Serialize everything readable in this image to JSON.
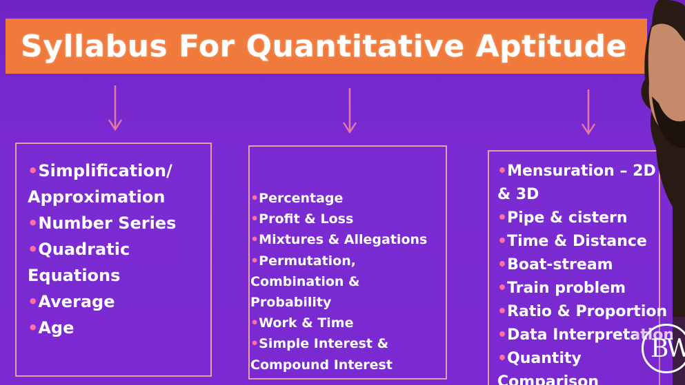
{
  "title": "Syllabus For Quantitative Aptitude",
  "colors": {
    "background": "#7a2ad0",
    "title_bar": "#f07a3c",
    "box_border": "#e8a0a8",
    "bullet": "#ff6fa5",
    "arrow": "#e27aa6",
    "text": "#ffffff"
  },
  "bullet_char": "•",
  "columns": [
    {
      "items": [
        "Simplification/",
        "Approximation",
        "•Number Series",
        "•Quadratic",
        "Equations",
        "•Average",
        "•Age"
      ]
    },
    {
      "items": [
        "•Percentage",
        "•Profit & Loss",
        "•Mixtures & Allegations",
        "•Permutation,",
        "Combination &",
        "Probability",
        "•Work & Time",
        "•Simple Interest &",
        "Compound Interest"
      ]
    },
    {
      "items": [
        "•Mensuration – 2D",
        "& 3D",
        "•Pipe & cistern",
        "•Time & Distance",
        "•Boat-stream",
        "•Train problem",
        "•Ratio & Proportion",
        "•Data Interpretation",
        "•Quantity",
        "Comparison"
      ]
    }
  ],
  "logo": {
    "letters": "BW",
    "icon": "pw-logo-icon"
  }
}
